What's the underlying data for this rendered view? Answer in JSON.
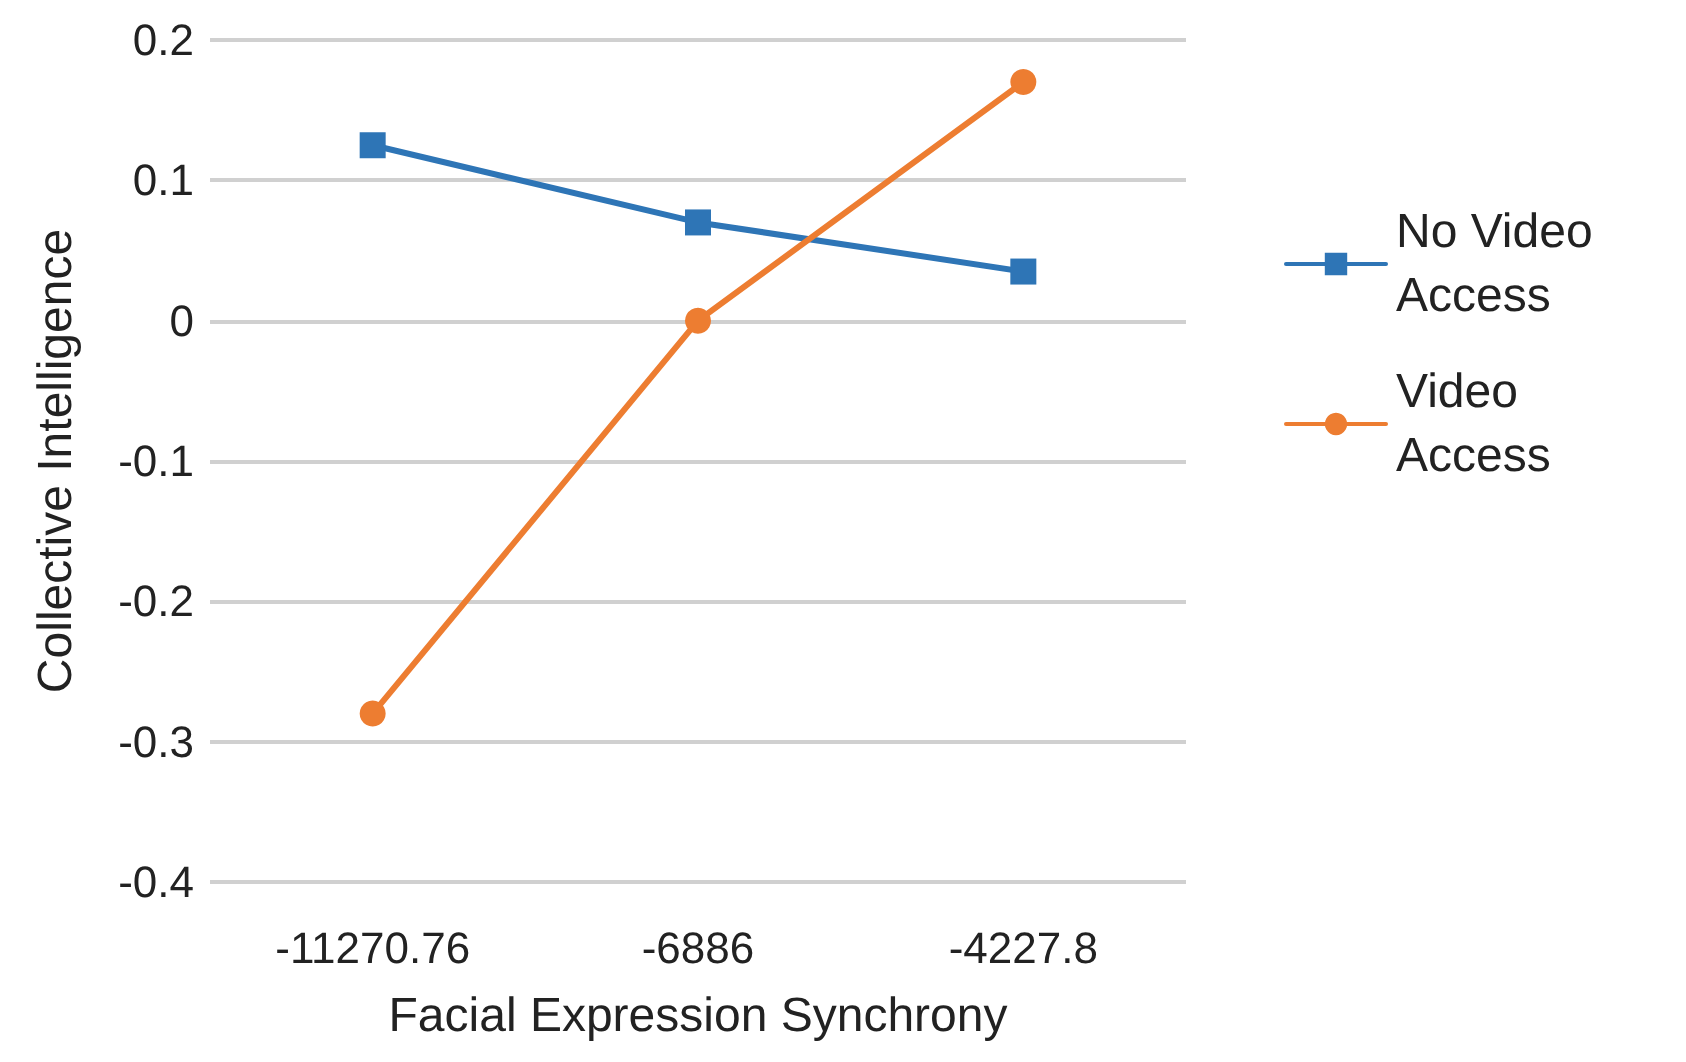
{
  "chart_data": {
    "type": "line",
    "xlabel": "Facial Expression Synchrony",
    "ylabel": "Collective Intelligence",
    "categories": [
      "-11270.76",
      "-6886",
      "-4227.8"
    ],
    "series": [
      {
        "name": "No Video Access",
        "color": "#2e75b6",
        "marker": "square",
        "values": [
          0.125,
          0.07,
          0.035
        ]
      },
      {
        "name": "Video Access",
        "color": "#ed7d31",
        "marker": "circle",
        "values": [
          -0.28,
          0.0,
          0.17
        ]
      }
    ],
    "ylim": [
      -0.4,
      0.2
    ],
    "yticks": [
      -0.4,
      -0.3,
      -0.2,
      -0.1,
      0,
      0.1,
      0.2
    ],
    "grid": "y",
    "legend": "right",
    "line_style": "solid"
  }
}
